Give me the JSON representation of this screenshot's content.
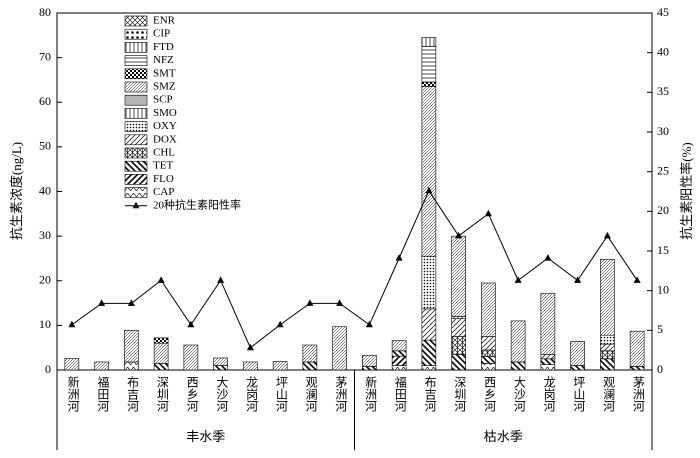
{
  "chart_data": {
    "type": "bar",
    "categories": [
      "新洲河",
      "福田河",
      "布吉河",
      "深圳河",
      "西乡河",
      "大沙河",
      "龙岗河",
      "坪山河",
      "观澜河",
      "茅洲河",
      "新洲河",
      "福田河",
      "布吉河",
      "深圳河",
      "西乡河",
      "大沙河",
      "龙岗河",
      "坪山河",
      "观澜河",
      "茅洲河"
    ],
    "groups": [
      {
        "name": "丰水季",
        "count": 10
      },
      {
        "name": "枯水季",
        "count": 10
      }
    ],
    "y_label": "抗生素浓度(ng/L)",
    "y2_label": "抗生素阳性率(%)",
    "ylim": [
      0,
      80
    ],
    "yticks": [
      0,
      10,
      20,
      30,
      40,
      50,
      60,
      70,
      80
    ],
    "y2lim": [
      0,
      45
    ],
    "y2ticks": [
      0,
      5,
      10,
      15,
      20,
      25,
      30,
      35,
      40,
      45
    ],
    "stacked": true,
    "series": [
      {
        "name": "ENR",
        "color": "#000",
        "pattern": "crosshatch",
        "values": [
          0,
          0,
          0,
          0,
          0,
          0,
          0,
          0,
          0,
          0,
          0,
          0,
          0,
          0,
          0,
          0,
          0,
          0,
          0,
          0
        ]
      },
      {
        "name": "CIP",
        "color": "#000",
        "pattern": "dots",
        "values": [
          0,
          0,
          0,
          0,
          0,
          0,
          0,
          0,
          0,
          0,
          0,
          0,
          0,
          0,
          0,
          0,
          0,
          0,
          0,
          0
        ]
      },
      {
        "name": "FTD",
        "color": "#000",
        "pattern": "vlines",
        "values": [
          0,
          0,
          0,
          0,
          0,
          0,
          0,
          0,
          0,
          0,
          0,
          0,
          2,
          0,
          0,
          0,
          0,
          0,
          0,
          0
        ]
      },
      {
        "name": "NFZ",
        "color": "#000",
        "pattern": "hlines",
        "values": [
          0,
          0,
          0,
          0,
          0,
          0,
          0,
          0,
          0,
          0,
          0,
          0,
          8,
          0,
          0,
          0,
          0,
          0,
          0,
          0
        ]
      },
      {
        "name": "SMT",
        "color": "#000",
        "pattern": "checker",
        "values": [
          0,
          0,
          0,
          1.2,
          0,
          0,
          0,
          0,
          0,
          0,
          0,
          0,
          1,
          0,
          0,
          0,
          0,
          0,
          0,
          0
        ]
      },
      {
        "name": "SMZ",
        "color": "#000",
        "pattern": "diagfine",
        "values": [
          2.6,
          1.8,
          7.1,
          4.5,
          5.6,
          1.7,
          1.8,
          1.9,
          3.8,
          9.7,
          2.5,
          2.3,
          38,
          18,
          12,
          9.2,
          13.7,
          5.4,
          17,
          7.9
        ]
      },
      {
        "name": "SCP",
        "color": "#000",
        "pattern": "vdense",
        "values": [
          0,
          0,
          0,
          0,
          0,
          0,
          0,
          0,
          0,
          0,
          0,
          0,
          0,
          0,
          0,
          0,
          0,
          0,
          0,
          0
        ]
      },
      {
        "name": "SMO",
        "color": "#000",
        "pattern": "vlines",
        "values": [
          0,
          0,
          0,
          0,
          0,
          0,
          0,
          0,
          0,
          0,
          0,
          0,
          0,
          0.5,
          0,
          0,
          0,
          0,
          0,
          0
        ]
      },
      {
        "name": "OXY",
        "color": "#000",
        "pattern": "dotsdense",
        "values": [
          0,
          0,
          0,
          0,
          0,
          0,
          0,
          0,
          0,
          0,
          0,
          0,
          11.8,
          0,
          0,
          0,
          0,
          0,
          2,
          0
        ]
      },
      {
        "name": "DOX",
        "color": "#000",
        "pattern": "diag",
        "values": [
          0,
          0,
          0,
          0,
          0,
          0,
          0,
          0,
          0,
          0,
          0,
          0,
          7,
          4,
          3,
          0,
          1,
          0,
          1.5,
          0
        ]
      },
      {
        "name": "CHL",
        "color": "#000",
        "pattern": "cross",
        "values": [
          0,
          0,
          0,
          0,
          0,
          0,
          0,
          0,
          0,
          0,
          0,
          0,
          0,
          4,
          1.5,
          0,
          0,
          0,
          1.8,
          0
        ]
      },
      {
        "name": "TET",
        "color": "#000",
        "pattern": "backthick",
        "values": [
          0,
          0,
          0,
          1.5,
          0,
          1,
          0,
          0,
          1.8,
          0,
          0.8,
          1.2,
          5.7,
          3.5,
          1.5,
          1.8,
          1.3,
          1,
          2.5,
          0.8
        ]
      },
      {
        "name": "FLO",
        "color": "#000",
        "pattern": "diagthick",
        "values": [
          0,
          0,
          0,
          0,
          0,
          0,
          0,
          0,
          0,
          0,
          0,
          2.1,
          0,
          0,
          0,
          0,
          0,
          0,
          0,
          0
        ]
      },
      {
        "name": "CAP",
        "color": "#000",
        "pattern": "wave",
        "values": [
          0,
          0,
          1.8,
          0,
          0,
          0,
          0,
          0,
          0,
          0,
          0,
          1,
          1,
          0,
          1.5,
          0,
          1.2,
          0,
          0,
          0
        ]
      },
      {
        "name": "20种抗生素阳性率",
        "type": "line",
        "axis": "y2",
        "color": "#000",
        "marker": "triangle",
        "values": [
          5.7,
          8.4,
          8.4,
          11.3,
          5.7,
          11.3,
          2.8,
          5.7,
          8.4,
          8.4,
          5.7,
          14.1,
          22.6,
          16.9,
          19.7,
          11.3,
          14.1,
          11.3,
          16.9,
          11.3
        ]
      }
    ]
  }
}
